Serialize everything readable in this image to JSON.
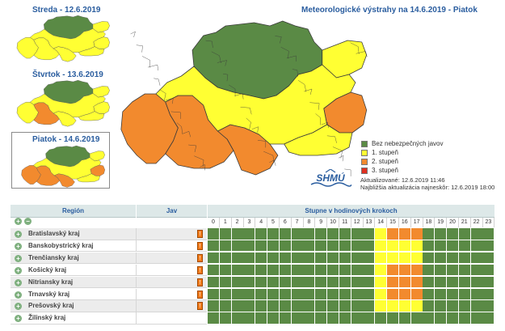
{
  "days": [
    {
      "label": "Streda - 12.6.2019",
      "levels": [
        "green",
        "yellow",
        "yellow",
        "yellow",
        "yellow",
        "yellow",
        "yellow",
        "yellow"
      ]
    },
    {
      "label": "Štvrtok - 13.6.2019",
      "levels": [
        "green",
        "yellow",
        "yellow",
        "orange",
        "yellow",
        "yellow",
        "yellow",
        "yellow"
      ]
    },
    {
      "label": "Piatok - 14.6.2019",
      "levels": [
        "green",
        "yellow",
        "orange",
        "orange",
        "orange",
        "orange",
        "yellow",
        "yellow"
      ]
    }
  ],
  "map": {
    "title": "Meteorologické výstrahy na 14.6.2019 - Piatok",
    "logo_text": "SHMÚ"
  },
  "legend": [
    {
      "label": "Bez nebezpečných javov",
      "color": "#5a8a45"
    },
    {
      "label": "1. stupeň",
      "color": "#ffff33"
    },
    {
      "label": "2. stupeň",
      "color": "#f28a2e"
    },
    {
      "label": "3. stupeň",
      "color": "#e03020"
    }
  ],
  "update": {
    "current": "Aktualizované: 12.6.2019 11:46",
    "next": "Najbližšia aktualizácia najneskôr: 12.6.2019 18:00"
  },
  "table": {
    "col_region": "Región",
    "col_jav": "Jav",
    "col_hours": "Stupne v hodinových krokoch",
    "hours": [
      "0",
      "1",
      "2",
      "3",
      "4",
      "5",
      "6",
      "7",
      "8",
      "9",
      "10",
      "11",
      "12",
      "13",
      "14",
      "15",
      "16",
      "17",
      "18",
      "19",
      "20",
      "21",
      "22",
      "23"
    ],
    "rows": [
      {
        "name": "Bratislavský kraj",
        "has_warning": true,
        "levels": [
          0,
          0,
          0,
          0,
          0,
          0,
          0,
          0,
          0,
          0,
          0,
          0,
          0,
          0,
          1,
          2,
          2,
          2,
          0,
          0,
          0,
          0,
          0,
          0
        ]
      },
      {
        "name": "Banskobystrický kraj",
        "has_warning": true,
        "levels": [
          0,
          0,
          0,
          0,
          0,
          0,
          0,
          0,
          0,
          0,
          0,
          0,
          0,
          0,
          1,
          1,
          1,
          1,
          0,
          0,
          0,
          0,
          0,
          0
        ]
      },
      {
        "name": "Trenčiansky kraj",
        "has_warning": true,
        "levels": [
          0,
          0,
          0,
          0,
          0,
          0,
          0,
          0,
          0,
          0,
          0,
          0,
          0,
          0,
          1,
          1,
          1,
          1,
          0,
          0,
          0,
          0,
          0,
          0
        ]
      },
      {
        "name": "Košický kraj",
        "has_warning": true,
        "levels": [
          0,
          0,
          0,
          0,
          0,
          0,
          0,
          0,
          0,
          0,
          0,
          0,
          0,
          0,
          1,
          2,
          2,
          2,
          0,
          0,
          0,
          0,
          0,
          0
        ]
      },
      {
        "name": "Nitriansky kraj",
        "has_warning": true,
        "levels": [
          0,
          0,
          0,
          0,
          0,
          0,
          0,
          0,
          0,
          0,
          0,
          0,
          0,
          0,
          1,
          2,
          2,
          2,
          0,
          0,
          0,
          0,
          0,
          0
        ]
      },
      {
        "name": "Trnavský kraj",
        "has_warning": true,
        "levels": [
          0,
          0,
          0,
          0,
          0,
          0,
          0,
          0,
          0,
          0,
          0,
          0,
          0,
          0,
          1,
          2,
          2,
          2,
          0,
          0,
          0,
          0,
          0,
          0
        ]
      },
      {
        "name": "Prešovský kraj",
        "has_warning": true,
        "levels": [
          0,
          0,
          0,
          0,
          0,
          0,
          0,
          0,
          0,
          0,
          0,
          0,
          0,
          0,
          1,
          1,
          1,
          1,
          0,
          0,
          0,
          0,
          0,
          0
        ]
      },
      {
        "name": "Žilinský kraj",
        "has_warning": false,
        "levels": [
          0,
          0,
          0,
          0,
          0,
          0,
          0,
          0,
          0,
          0,
          0,
          0,
          0,
          0,
          0,
          0,
          0,
          0,
          0,
          0,
          0,
          0,
          0,
          0
        ]
      }
    ]
  },
  "level_colors": [
    "#5a8a45",
    "#ffff33",
    "#f28a2e",
    "#e03020"
  ]
}
